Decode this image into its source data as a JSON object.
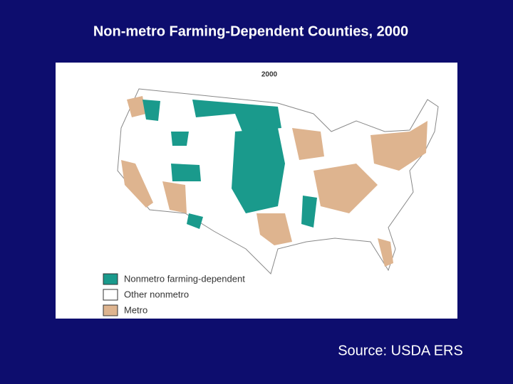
{
  "title": "Non-metro Farming-Dependent Counties, 2000",
  "map": {
    "year_label": "2000",
    "legend": [
      {
        "label": "Nonmetro farming-dependent",
        "color": "#1a9a8c"
      },
      {
        "label": "Other nonmetro",
        "color": "#ffffff"
      },
      {
        "label": "Metro",
        "color": "#deb48f"
      }
    ]
  },
  "source": "Source: USDA ERS"
}
